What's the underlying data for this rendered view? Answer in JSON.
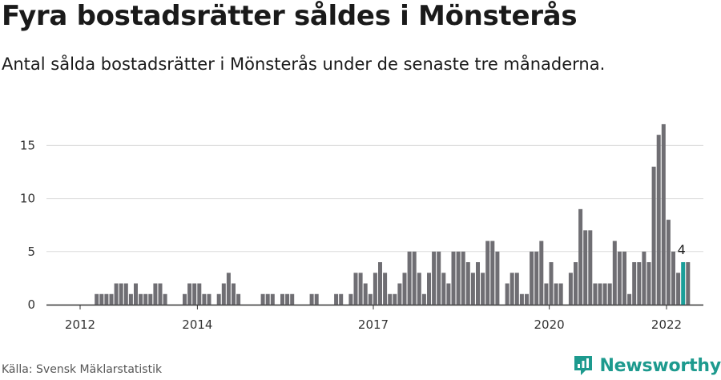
{
  "header": {
    "title": "Fyra bostadsrätter såldes i Mönsterås",
    "subtitle": "Antal sålda bostadsrätter i Mönsterås under de senaste tre månaderna."
  },
  "footer": {
    "source": "Källa: Svensk Mäklarstatistik",
    "brand": "Newsworthy",
    "brand_icon": "newsworthy-logo-icon"
  },
  "colors": {
    "bar": "#6f6e73",
    "highlight": "#1a9e99",
    "grid": "#dcdcdc",
    "axis": "#333333",
    "brand": "#1d9a8e"
  },
  "chart_data": {
    "type": "bar",
    "title": "Fyra bostadsrätter såldes i Mönsterås",
    "subtitle": "Antal sålda bostadsrätter i Mönsterås under de senaste tre månaderna.",
    "xlabel": "",
    "ylabel": "",
    "ylim": [
      0,
      17.5
    ],
    "yticks": [
      0,
      5,
      10,
      15
    ],
    "xticks": [
      {
        "label": "2012",
        "index": 0
      },
      {
        "label": "2014",
        "index": 24
      },
      {
        "label": "2017",
        "index": 60
      },
      {
        "label": "2020",
        "index": 96
      },
      {
        "label": "2022",
        "index": 120
      }
    ],
    "grid": true,
    "highlight_index": 122,
    "highlight_label": "4",
    "values": [
      0,
      0,
      1,
      1,
      1,
      1,
      2,
      2,
      2,
      1,
      2,
      1,
      1,
      1,
      2,
      2,
      1,
      0,
      0,
      0,
      1,
      2,
      2,
      2,
      1,
      1,
      0,
      1,
      2,
      3,
      2,
      1,
      0,
      0,
      0,
      0,
      1,
      1,
      1,
      0,
      1,
      1,
      1,
      0,
      0,
      0,
      1,
      1,
      0,
      0,
      0,
      1,
      1,
      0,
      1,
      3,
      3,
      2,
      1,
      3,
      4,
      3,
      1,
      1,
      2,
      3,
      5,
      5,
      3,
      1,
      3,
      5,
      5,
      3,
      2,
      5,
      5,
      5,
      4,
      3,
      4,
      3,
      6,
      6,
      5,
      0,
      2,
      3,
      3,
      1,
      1,
      5,
      5,
      6,
      2,
      4,
      2,
      2,
      0,
      3,
      4,
      9,
      7,
      7,
      2,
      2,
      2,
      2,
      6,
      5,
      5,
      1,
      4,
      4,
      5,
      4,
      13,
      16,
      17,
      8,
      5,
      3,
      4,
      4
    ]
  }
}
